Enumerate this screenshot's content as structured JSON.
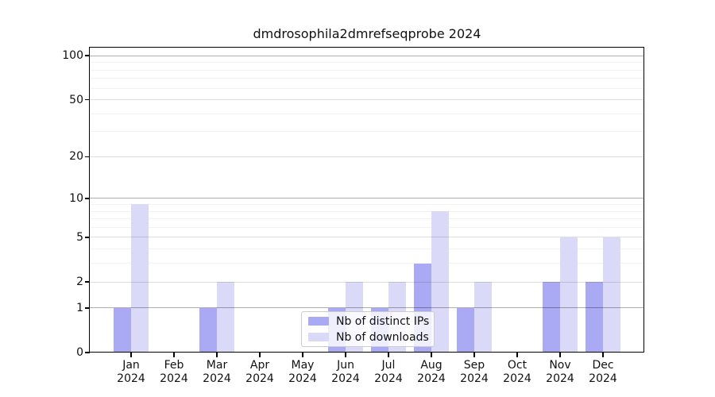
{
  "figure": {
    "title": "dmdrosophila2dmrefseqprobe 2024"
  },
  "chart_data": {
    "type": "bar",
    "title": "dmdrosophila2dmrefseqprobe 2024",
    "categories": [
      "Jan",
      "Feb",
      "Mar",
      "Apr",
      "May",
      "Jun",
      "Jul",
      "Aug",
      "Sep",
      "Oct",
      "Nov",
      "Dec"
    ],
    "x_year_label": "2024",
    "series": [
      {
        "name": "Nb of distinct IPs",
        "color": "#a9a9f4",
        "values": [
          1,
          0,
          1,
          0,
          0,
          1,
          1,
          3,
          1,
          0,
          2,
          2
        ]
      },
      {
        "name": "Nb of downloads",
        "color": "#dadaf8",
        "values": [
          9,
          0,
          2,
          0,
          0,
          2,
          2,
          8,
          2,
          0,
          5,
          5
        ]
      }
    ],
    "yaxis": {
      "scale": "log1p",
      "tick_values": [
        0,
        1,
        2,
        5,
        10,
        20,
        50,
        100
      ],
      "tick_labels": [
        "0",
        "1",
        "2",
        "5",
        "10",
        "20",
        "50",
        "100"
      ],
      "decade_lines": [
        1,
        10,
        100
      ],
      "minor_gridlines": [
        3,
        4,
        6,
        7,
        8,
        9,
        30,
        40,
        60,
        70,
        80,
        90
      ],
      "ylim": [
        0,
        114
      ]
    },
    "xlabel": "",
    "ylabel": "",
    "grid": true,
    "legend": {
      "position": "lower center",
      "labels": [
        "Nb of distinct IPs",
        "Nb of downloads"
      ]
    }
  },
  "colors": {
    "background": "#ffffff",
    "bar_distinct_ips": "#a9a9f4",
    "bar_downloads": "#dadaf8",
    "spine": "#000000",
    "text": "#111111"
  }
}
